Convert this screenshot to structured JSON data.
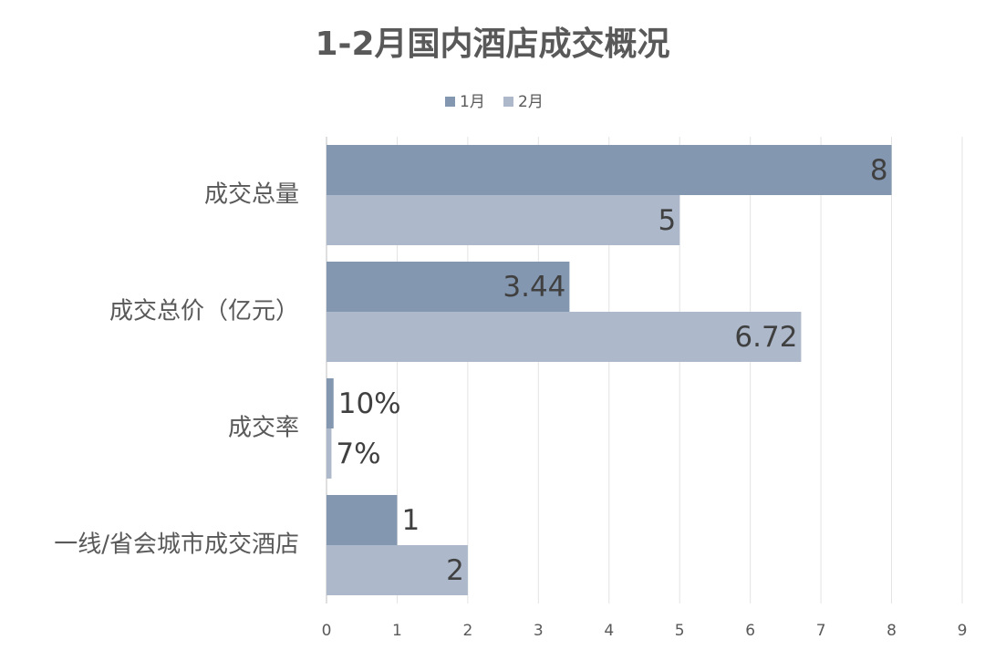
{
  "chart_data": {
    "type": "bar",
    "orientation": "horizontal",
    "title": "1-2月国内酒店成交概况",
    "categories": [
      "成交总量",
      "成交总价（亿元）",
      "成交率",
      "一线/省会城市成交酒店"
    ],
    "series": [
      {
        "name": "1月",
        "color": "#8497b0",
        "values": [
          8,
          3.44,
          0.1,
          1
        ],
        "value_labels": [
          "8",
          "3.44",
          "10%",
          "1"
        ]
      },
      {
        "name": "2月",
        "color": "#adb9ca",
        "values": [
          5,
          6.72,
          0.07,
          2
        ],
        "value_labels": [
          "5",
          "6.72",
          "7%",
          "2"
        ]
      }
    ],
    "xlim": [
      0,
      9
    ],
    "xticks": [
      0,
      1,
      2,
      3,
      4,
      5,
      6,
      7,
      8,
      9
    ],
    "grid": true,
    "legend": "top"
  }
}
